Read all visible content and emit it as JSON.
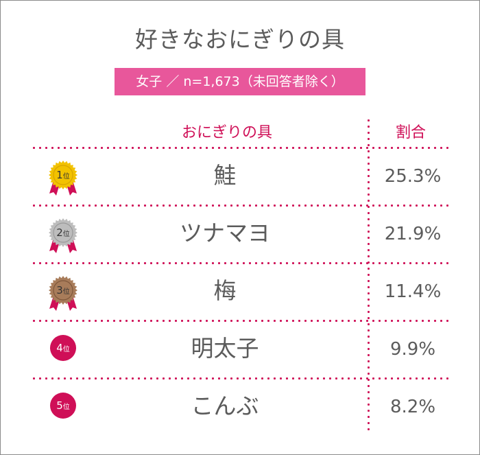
{
  "title": "好きなおにぎりの具",
  "subtitle": "女子 ／ n=1,673（未回答者除く）",
  "columns": {
    "name": "おにぎりの具",
    "pct": "割合"
  },
  "colors": {
    "accent": "#cf0f57",
    "subtitle_bg": "#e8579b",
    "text": "#5b5b5b",
    "gold": "#f2c200",
    "silver": "#bdbdbd",
    "bronze": "#a87c5a",
    "ribbon": "#cf0f57"
  },
  "rank_suffix": "位",
  "chart_data": {
    "type": "table",
    "title": "好きなおにぎりの具",
    "subtitle": "女子 ／ n=1,673（未回答者除く）",
    "columns": [
      "おにぎりの具",
      "割合"
    ],
    "rows": [
      {
        "rank": "1",
        "medal": "gold",
        "name": "鮭",
        "value": 25.3,
        "label": "25.3%"
      },
      {
        "rank": "2",
        "medal": "silver",
        "name": "ツナマヨ",
        "value": 21.9,
        "label": "21.9%"
      },
      {
        "rank": "3",
        "medal": "bronze",
        "name": "梅",
        "value": 11.4,
        "label": "11.4%"
      },
      {
        "rank": "4",
        "medal": "circle",
        "name": "明太子",
        "value": 9.9,
        "label": "9.9%"
      },
      {
        "rank": "5",
        "medal": "circle",
        "name": "こんぶ",
        "value": 8.2,
        "label": "8.2%"
      }
    ]
  }
}
